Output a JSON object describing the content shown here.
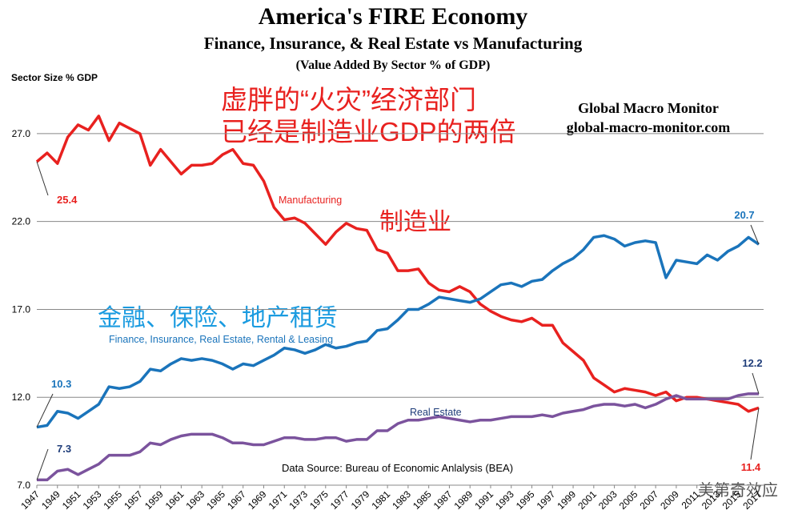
{
  "title": "America's FIRE Economy",
  "subtitle": "Finance, Insurance, & Real Estate vs Manufacturing",
  "subsubtitle": "(Value Added By Sector % of GDP)",
  "y_axis_label": "Sector Size % GDP",
  "annotation_cn_line1": "虚胖的“火灾”经济部门",
  "annotation_cn_line2": "已经是制造业GDP的两倍",
  "source_brand": "Global Macro Monitor",
  "source_url": "global-macro-monitor.com",
  "label_manufacturing_cn": "制造业",
  "label_fire_cn": "金融、保险、地产租赁",
  "data_source": "Data Source:  Bureau of Economic Anlalysis (BEA)",
  "watermark": "美第奇效应",
  "chart_data": {
    "type": "line",
    "title": "America's FIRE Economy",
    "ylabel": "Sector Size % GDP",
    "ylim": [
      7.0,
      29.5
    ],
    "yticks": [
      "7.0",
      "12.0",
      "17.0",
      "22.0",
      "27.0"
    ],
    "xlim": [
      1947,
      2017
    ],
    "xticks": [
      "1947",
      "1949",
      "1951",
      "1953",
      "1955",
      "1957",
      "1959",
      "1961",
      "1963",
      "1965",
      "1967",
      "1969",
      "1971",
      "1973",
      "1975",
      "1977",
      "1979",
      "1981",
      "1983",
      "1985",
      "1987",
      "1989",
      "1991",
      "1993",
      "1995",
      "1997",
      "1999",
      "2001",
      "2003",
      "2005",
      "2007",
      "2009",
      "2011",
      "2013",
      "2015",
      "2017"
    ],
    "grid": "horizontal",
    "x": [
      1947,
      1948,
      1949,
      1950,
      1951,
      1952,
      1953,
      1954,
      1955,
      1956,
      1957,
      1958,
      1959,
      1960,
      1961,
      1962,
      1963,
      1964,
      1965,
      1966,
      1967,
      1968,
      1969,
      1970,
      1971,
      1972,
      1973,
      1974,
      1975,
      1976,
      1977,
      1978,
      1979,
      1980,
      1981,
      1982,
      1983,
      1984,
      1985,
      1986,
      1987,
      1988,
      1989,
      1990,
      1991,
      1992,
      1993,
      1994,
      1995,
      1996,
      1997,
      1998,
      1999,
      2000,
      2001,
      2002,
      2003,
      2004,
      2005,
      2006,
      2007,
      2008,
      2009,
      2010,
      2011,
      2012,
      2013,
      2014,
      2015,
      2016,
      2017
    ],
    "series": [
      {
        "name": "Manufacturing",
        "color": "#e8211f",
        "values": [
          25.4,
          25.9,
          25.3,
          26.8,
          27.5,
          27.2,
          28.0,
          26.6,
          27.6,
          27.3,
          27.0,
          25.2,
          26.1,
          25.4,
          24.7,
          25.2,
          25.2,
          25.3,
          25.8,
          26.1,
          25.3,
          25.2,
          24.3,
          22.8,
          22.1,
          22.2,
          21.9,
          21.3,
          20.7,
          21.4,
          21.9,
          21.6,
          21.5,
          20.4,
          20.2,
          19.2,
          19.2,
          19.3,
          18.5,
          18.1,
          18.0,
          18.3,
          18.0,
          17.3,
          16.9,
          16.6,
          16.4,
          16.3,
          16.5,
          16.1,
          16.1,
          15.1,
          14.6,
          14.1,
          13.1,
          12.7,
          12.3,
          12.5,
          12.4,
          12.3,
          12.1,
          12.3,
          11.8,
          12.0,
          12.0,
          11.9,
          11.8,
          11.7,
          11.6,
          11.2,
          11.4
        ],
        "start_label": "25.4",
        "end_label": "11.4"
      },
      {
        "name": "Finance, Insurance, Real Estate, Rental  & Leasing",
        "color": "#1a74bb",
        "values": [
          10.3,
          10.4,
          11.2,
          11.1,
          10.8,
          11.2,
          11.6,
          12.6,
          12.5,
          12.6,
          12.9,
          13.6,
          13.5,
          13.9,
          14.2,
          14.1,
          14.2,
          14.1,
          13.9,
          13.6,
          13.9,
          13.8,
          14.1,
          14.4,
          14.8,
          14.7,
          14.5,
          14.7,
          15.0,
          14.8,
          14.9,
          15.1,
          15.2,
          15.8,
          15.9,
          16.4,
          17.0,
          17.0,
          17.3,
          17.7,
          17.6,
          17.5,
          17.4,
          17.6,
          18.0,
          18.4,
          18.5,
          18.3,
          18.6,
          18.7,
          19.2,
          19.6,
          19.9,
          20.4,
          21.1,
          21.2,
          21.0,
          20.6,
          20.8,
          20.9,
          20.8,
          18.8,
          19.8,
          19.7,
          19.6,
          20.1,
          19.8,
          20.3,
          20.6,
          21.1,
          20.7
        ],
        "start_label": "10.3",
        "end_label": "20.7"
      },
      {
        "name": "Real Estate",
        "color": "#7b539d",
        "values": [
          7.3,
          7.3,
          7.8,
          7.9,
          7.6,
          7.9,
          8.2,
          8.7,
          8.7,
          8.7,
          8.9,
          9.4,
          9.3,
          9.6,
          9.8,
          9.9,
          9.9,
          9.9,
          9.7,
          9.4,
          9.4,
          9.3,
          9.3,
          9.5,
          9.7,
          9.7,
          9.6,
          9.6,
          9.7,
          9.7,
          9.5,
          9.6,
          9.6,
          10.1,
          10.1,
          10.5,
          10.7,
          10.7,
          10.8,
          10.9,
          10.8,
          10.7,
          10.6,
          10.7,
          10.7,
          10.8,
          10.9,
          10.9,
          10.9,
          11.0,
          10.9,
          11.1,
          11.2,
          11.3,
          11.5,
          11.6,
          11.6,
          11.5,
          11.6,
          11.4,
          11.6,
          11.9,
          12.1,
          11.9,
          11.9,
          11.9,
          11.9,
          11.9,
          12.1,
          12.2,
          12.2
        ],
        "start_label": "7.3",
        "end_label": "12.2"
      }
    ]
  }
}
